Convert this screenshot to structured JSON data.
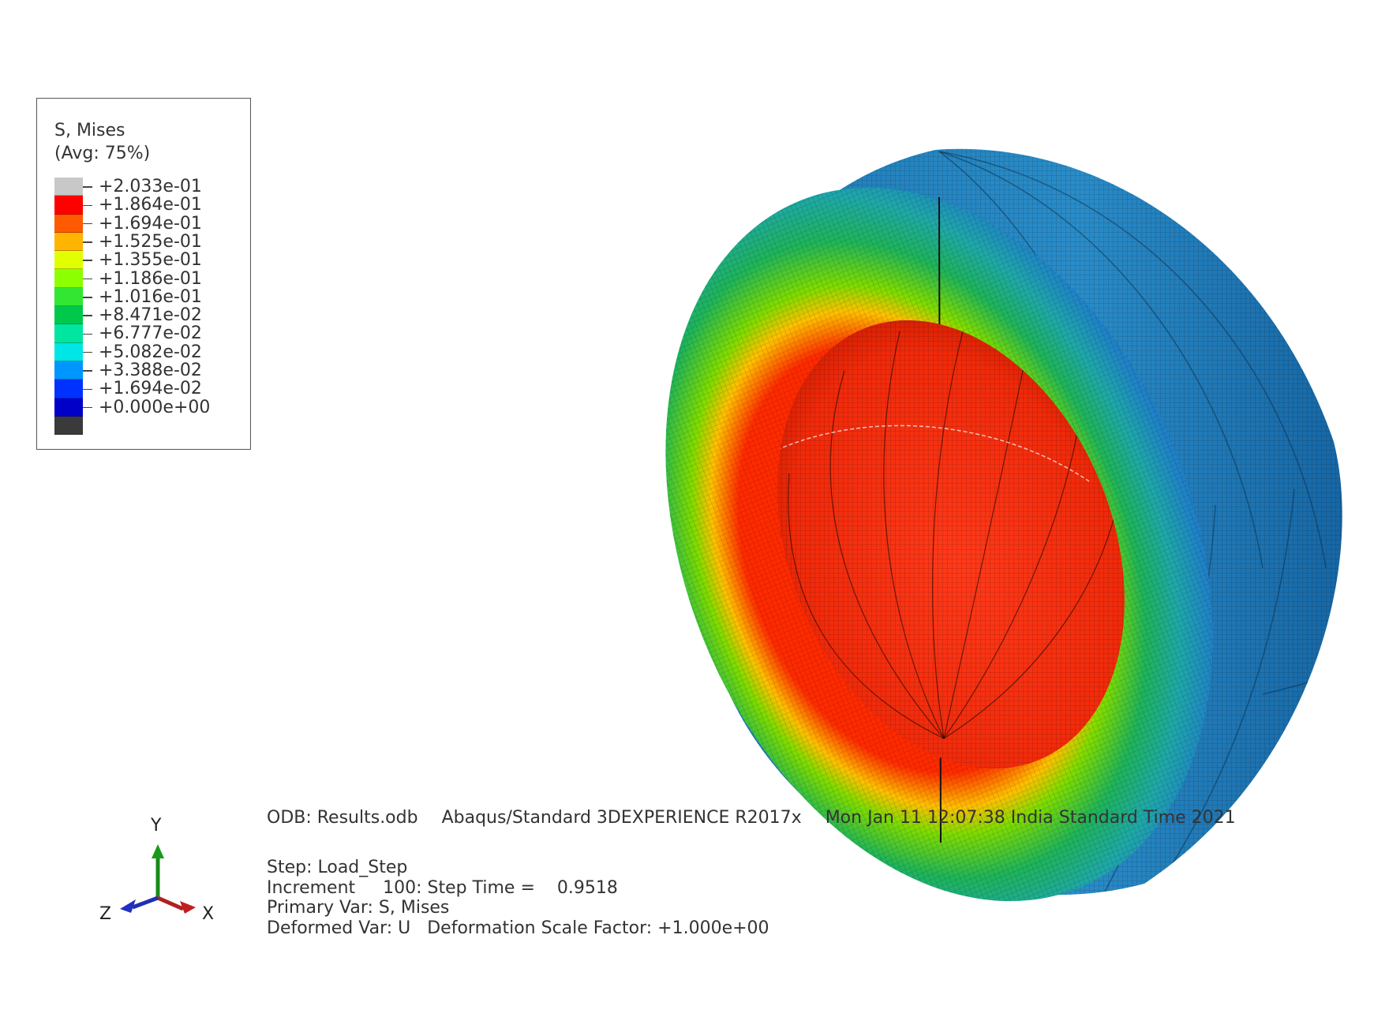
{
  "legend": {
    "title_line1": "S, Mises",
    "title_line2": "(Avg: 75%)",
    "values": [
      "+2.033e-01",
      "+1.864e-01",
      "+1.694e-01",
      "+1.525e-01",
      "+1.355e-01",
      "+1.186e-01",
      "+1.016e-01",
      "+8.471e-02",
      "+6.777e-02",
      "+5.082e-02",
      "+3.388e-02",
      "+1.694e-02",
      "+0.000e+00"
    ],
    "colors": [
      "#c8c8c8",
      "#ff0000",
      "#ff5a00",
      "#ffb400",
      "#e1ff00",
      "#8cff00",
      "#32e632",
      "#00c84b",
      "#00e6a0",
      "#00e6e6",
      "#0096ff",
      "#0032ff",
      "#0000c8",
      "#3a3a3a"
    ]
  },
  "info": {
    "odb": "ODB: Results.odb",
    "solver": "Abaqus/Standard 3DEXPERIENCE R2017x",
    "date": "Mon Jan 11 12:07:38 India Standard Time 2021",
    "step": "Step: Load_Step",
    "increment": "Increment     100: Step Time =    0.9518",
    "primary_var": "Primary Var: S, Mises",
    "deformed_var": "Deformed Var: U   Deformation Scale Factor: +1.000e+00"
  },
  "triad": {
    "y": "Y",
    "x": "X",
    "z": "Z"
  }
}
